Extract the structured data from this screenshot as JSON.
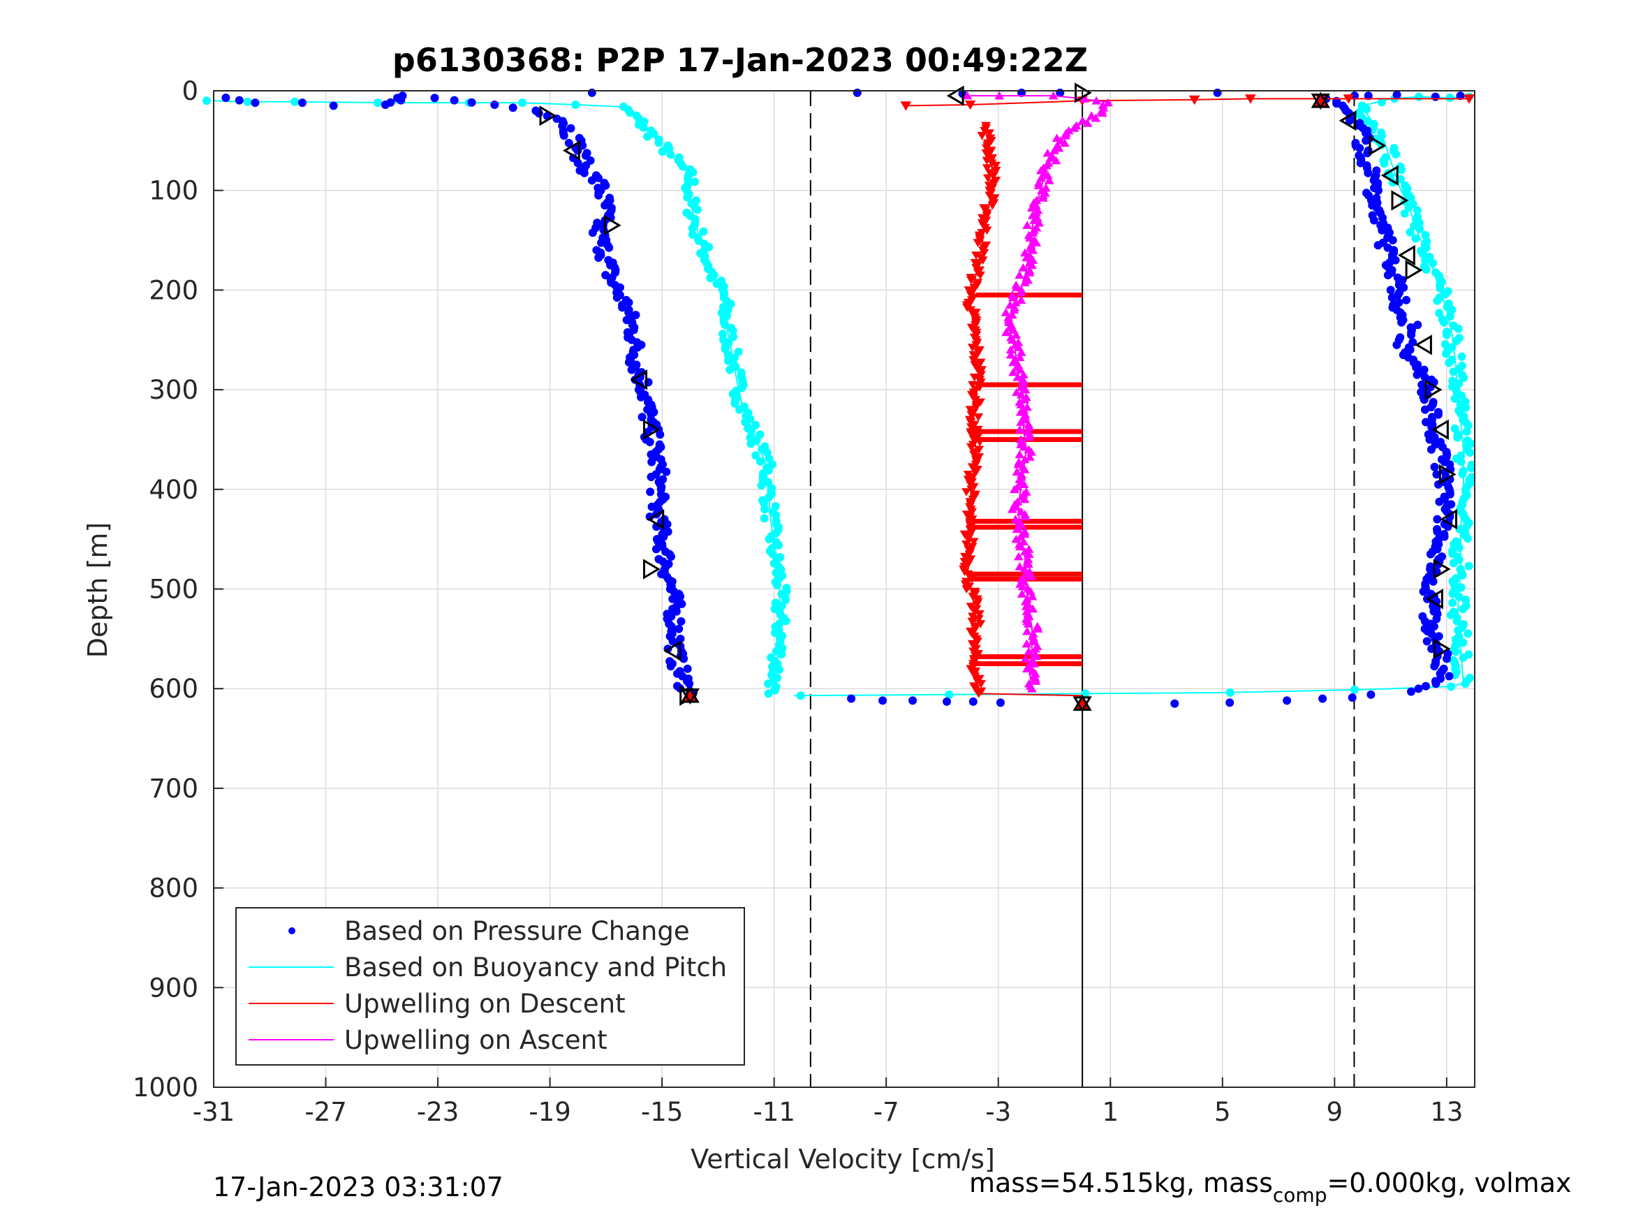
{
  "footer": {
    "timestamp": "17-Jan-2023 03:31:07",
    "mass_text": "mass=54.515kg, mass",
    "mass_sub": "comp",
    "mass_rest": "=0.000kg, volmax"
  },
  "chart_data": {
    "type": "scatter",
    "title": "p6130368: P2P 17-Jan-2023 00:49:22Z",
    "xlabel": "Vertical Velocity [cm/s]",
    "ylabel": "Depth [m]",
    "xlim": [
      -31,
      14
    ],
    "ylim": [
      0,
      1000
    ],
    "y_reversed": true,
    "x_ticks": [
      -31,
      -27,
      -23,
      -19,
      -15,
      -11,
      -7,
      -3,
      1,
      5,
      9,
      13
    ],
    "y_ticks": [
      0,
      100,
      200,
      300,
      400,
      500,
      600,
      700,
      800,
      900,
      1000
    ],
    "grid": true,
    "legend_position": "bottom-left",
    "reference_lines": [
      {
        "x": -9.7,
        "style": "dashed",
        "color": "#000000"
      },
      {
        "x": 9.7,
        "style": "dashed",
        "color": "#000000"
      },
      {
        "x": 0,
        "style": "solid",
        "color": "#000000",
        "y_from": 0,
        "y_to": 1000
      }
    ],
    "series": [
      {
        "name": "Based on Pressure Change",
        "color": "#0000ff",
        "marker": "dot",
        "descent": [
          [
            -30.5,
            7
          ],
          [
            -29.8,
            12
          ],
          [
            -28,
            12
          ],
          [
            -27,
            15
          ],
          [
            -25,
            14
          ],
          [
            -24,
            5
          ],
          [
            -21,
            14
          ],
          [
            -19.5,
            20
          ],
          [
            -18.5,
            28
          ],
          [
            -18.3,
            40
          ],
          [
            -18,
            55
          ],
          [
            -17.8,
            75
          ],
          [
            -17.2,
            95
          ],
          [
            -17,
            120
          ],
          [
            -17.3,
            140
          ],
          [
            -17,
            165
          ],
          [
            -16.8,
            190
          ],
          [
            -16.3,
            215
          ],
          [
            -16,
            245
          ],
          [
            -15.9,
            275
          ],
          [
            -15.6,
            300
          ],
          [
            -15.5,
            325
          ],
          [
            -15.3,
            355
          ],
          [
            -15.1,
            385
          ],
          [
            -15.2,
            420
          ],
          [
            -15,
            450
          ],
          [
            -14.8,
            480
          ],
          [
            -14.6,
            510
          ],
          [
            -14.5,
            540
          ],
          [
            -14.5,
            570
          ],
          [
            -14.2,
            595
          ],
          [
            -14,
            607
          ]
        ],
        "ascent": [
          [
            -8,
            610
          ],
          [
            -7,
            612
          ],
          [
            -6,
            612
          ],
          [
            -5,
            613
          ],
          [
            -4,
            613
          ],
          [
            -3,
            614
          ],
          [
            3.5,
            615
          ],
          [
            5,
            614
          ],
          [
            7,
            612
          ],
          [
            8.5,
            610
          ],
          [
            9.5,
            609
          ],
          [
            10.5,
            606
          ],
          [
            11.5,
            603
          ],
          [
            12.2,
            600
          ],
          [
            12.8,
            590
          ],
          [
            12.8,
            570
          ],
          [
            12.5,
            545
          ],
          [
            12.4,
            520
          ],
          [
            12.5,
            495
          ],
          [
            12.6,
            470
          ],
          [
            12.7,
            445
          ],
          [
            12.9,
            420
          ],
          [
            13,
            395
          ],
          [
            12.8,
            370
          ],
          [
            12.6,
            345
          ],
          [
            12.5,
            320
          ],
          [
            12.3,
            295
          ],
          [
            12,
            275
          ],
          [
            11.5,
            255
          ],
          [
            11.7,
            235
          ],
          [
            11.3,
            215
          ],
          [
            11.2,
            195
          ],
          [
            11,
            170
          ],
          [
            10.8,
            150
          ],
          [
            10.7,
            130
          ],
          [
            10.5,
            110
          ],
          [
            10.3,
            90
          ],
          [
            10.2,
            70
          ],
          [
            10,
            50
          ],
          [
            9.8,
            30
          ],
          [
            9.2,
            15
          ],
          [
            8.8,
            8
          ],
          [
            9.5,
            5
          ],
          [
            10.5,
            5
          ],
          [
            11.5,
            4
          ],
          [
            12.5,
            6
          ],
          [
            13.2,
            5
          ],
          [
            5,
            2
          ],
          [
            -0.5,
            2
          ],
          [
            -2,
            2
          ],
          [
            -4,
            3
          ],
          [
            -8,
            2
          ],
          [
            -17.5,
            2
          ]
        ]
      },
      {
        "name": "Based on Buoyancy and Pitch",
        "color": "#00ffff",
        "marker": "line-dot",
        "descent": [
          [
            -31,
            10
          ],
          [
            -30,
            11
          ],
          [
            -28,
            11
          ],
          [
            -25,
            12
          ],
          [
            -22,
            12
          ],
          [
            -20,
            12
          ],
          [
            -18,
            14
          ],
          [
            -16.5,
            16
          ],
          [
            -16,
            25
          ],
          [
            -15.5,
            40
          ],
          [
            -15,
            55
          ],
          [
            -14.5,
            70
          ],
          [
            -14,
            85
          ],
          [
            -14,
            110
          ],
          [
            -13.8,
            135
          ],
          [
            -13.5,
            160
          ],
          [
            -13.2,
            185
          ],
          [
            -12.8,
            205
          ],
          [
            -12.7,
            235
          ],
          [
            -12.5,
            265
          ],
          [
            -12.3,
            295
          ],
          [
            -12.1,
            320
          ],
          [
            -11.7,
            345
          ],
          [
            -11.3,
            375
          ],
          [
            -11.2,
            405
          ],
          [
            -11.1,
            435
          ],
          [
            -11,
            465
          ],
          [
            -10.8,
            490
          ],
          [
            -10.8,
            520
          ],
          [
            -10.8,
            550
          ],
          [
            -10.9,
            575
          ],
          [
            -11,
            595
          ],
          [
            -11.2,
            605
          ]
        ],
        "ascent": [
          [
            -10.3,
            607
          ],
          [
            -5,
            606
          ],
          [
            0,
            605
          ],
          [
            5,
            604
          ],
          [
            10,
            601
          ],
          [
            13,
            598
          ],
          [
            13.6,
            595
          ],
          [
            13.5,
            560
          ],
          [
            13.4,
            520
          ],
          [
            13.5,
            480
          ],
          [
            13.5,
            440
          ],
          [
            13.6,
            400
          ],
          [
            13.6,
            360
          ],
          [
            13.5,
            330
          ],
          [
            13.4,
            300
          ],
          [
            13.3,
            270
          ],
          [
            13.2,
            245
          ],
          [
            13,
            220
          ],
          [
            12.7,
            195
          ],
          [
            12.4,
            170
          ],
          [
            12,
            145
          ],
          [
            11.7,
            120
          ],
          [
            11.3,
            95
          ],
          [
            11,
            70
          ],
          [
            10.7,
            45
          ],
          [
            10.2,
            25
          ],
          [
            10,
            15
          ],
          [
            11,
            8
          ],
          [
            12,
            6
          ],
          [
            13,
            7
          ],
          [
            13.8,
            6
          ]
        ]
      },
      {
        "name": "Upwelling on Descent",
        "color": "#ff0000",
        "marker": "triangle-down",
        "points": [
          [
            -6.3,
            15
          ],
          [
            -4,
            14
          ],
          [
            0,
            10
          ],
          [
            4,
            9
          ],
          [
            6,
            8
          ],
          [
            8.5,
            8
          ],
          [
            9.5,
            8
          ],
          [
            13.8,
            8
          ],
          [
            -3.5,
            35
          ],
          [
            -3.3,
            60
          ],
          [
            -3.2,
            85
          ],
          [
            -3.3,
            110
          ],
          [
            -3.5,
            135
          ],
          [
            -3.6,
            160
          ],
          [
            -3.8,
            185
          ],
          [
            -4,
            210
          ],
          [
            -3.9,
            235
          ],
          [
            -3.8,
            260
          ],
          [
            -3.7,
            285
          ],
          [
            -3.8,
            310
          ],
          [
            -3.9,
            335
          ],
          [
            -3.8,
            360
          ],
          [
            -3.9,
            385
          ],
          [
            -4,
            410
          ],
          [
            -4.1,
            435
          ],
          [
            -4,
            460
          ],
          [
            -4.1,
            485
          ],
          [
            -3.9,
            510
          ],
          [
            -3.8,
            535
          ],
          [
            -3.9,
            560
          ],
          [
            -3.8,
            585
          ],
          [
            -3.7,
            605
          ]
        ],
        "horizontal_bands": [
          [
            205,
            -3.8,
            0
          ],
          [
            295,
            -3.8,
            0
          ],
          [
            342,
            -3.9,
            0
          ],
          [
            350,
            -3.9,
            0
          ],
          [
            432,
            -4.1,
            0
          ],
          [
            438,
            -4.1,
            0
          ],
          [
            485,
            -4.1,
            0
          ],
          [
            490,
            -4.1,
            0
          ],
          [
            568,
            -3.9,
            0
          ],
          [
            575,
            -3.9,
            0
          ]
        ]
      },
      {
        "name": "Upwelling on Ascent",
        "color": "#ff00ff",
        "marker": "triangle-up",
        "points": [
          [
            -4,
            5
          ],
          [
            -3,
            5
          ],
          [
            -1,
            5
          ],
          [
            0,
            8
          ],
          [
            1,
            12
          ],
          [
            0.5,
            25
          ],
          [
            -0.5,
            40
          ],
          [
            -1,
            60
          ],
          [
            -1.3,
            80
          ],
          [
            -1.5,
            100
          ],
          [
            -1.7,
            120
          ],
          [
            -1.8,
            140
          ],
          [
            -1.9,
            160
          ],
          [
            -2,
            180
          ],
          [
            -2.2,
            200
          ],
          [
            -2.5,
            220
          ],
          [
            -2.6,
            240
          ],
          [
            -2.4,
            260
          ],
          [
            -2.3,
            280
          ],
          [
            -2.2,
            300
          ],
          [
            -2.1,
            320
          ],
          [
            -2.1,
            340
          ],
          [
            -2.0,
            360
          ],
          [
            -2.1,
            380
          ],
          [
            -2.2,
            400
          ],
          [
            -2.3,
            420
          ],
          [
            -2.2,
            440
          ],
          [
            -2.1,
            460
          ],
          [
            -2.0,
            480
          ],
          [
            -2.0,
            500
          ],
          [
            -1.9,
            520
          ],
          [
            -1.8,
            540
          ],
          [
            -1.8,
            560
          ],
          [
            -1.9,
            580
          ],
          [
            -1.8,
            600
          ]
        ]
      }
    ],
    "markers": {
      "right_triangle_open": [
        [
          -19.1,
          25
        ],
        [
          -18.2,
          60
        ],
        [
          -16.8,
          135
        ],
        [
          -15.8,
          290
        ],
        [
          -15.4,
          340
        ],
        [
          -15.2,
          430
        ],
        [
          -15.4,
          480
        ],
        [
          -14.6,
          562
        ],
        [
          -14.1,
          607
        ],
        [
          -4.5,
          5
        ],
        [
          0,
          2
        ],
        [
          9.5,
          30
        ],
        [
          10.5,
          55
        ],
        [
          11,
          85
        ],
        [
          11.3,
          110
        ],
        [
          11.6,
          165
        ],
        [
          11.8,
          180
        ],
        [
          12.2,
          255
        ],
        [
          12.5,
          300
        ],
        [
          12.8,
          340
        ],
        [
          13,
          385
        ],
        [
          13.1,
          430
        ],
        [
          12.8,
          480
        ],
        [
          12.6,
          510
        ],
        [
          12.8,
          560
        ]
      ],
      "red_filled": [
        [
          -14,
          607
        ],
        [
          0,
          615
        ],
        [
          8.5,
          10
        ]
      ]
    },
    "legend": [
      {
        "label": "Based on Pressure Change",
        "color": "#0000ff",
        "style": "dot"
      },
      {
        "label": "Based on Buoyancy and Pitch",
        "color": "#00ffff",
        "style": "line"
      },
      {
        "label": "Upwelling on Descent",
        "color": "#ff0000",
        "style": "line"
      },
      {
        "label": "Upwelling on Ascent",
        "color": "#ff00ff",
        "style": "line"
      }
    ]
  }
}
